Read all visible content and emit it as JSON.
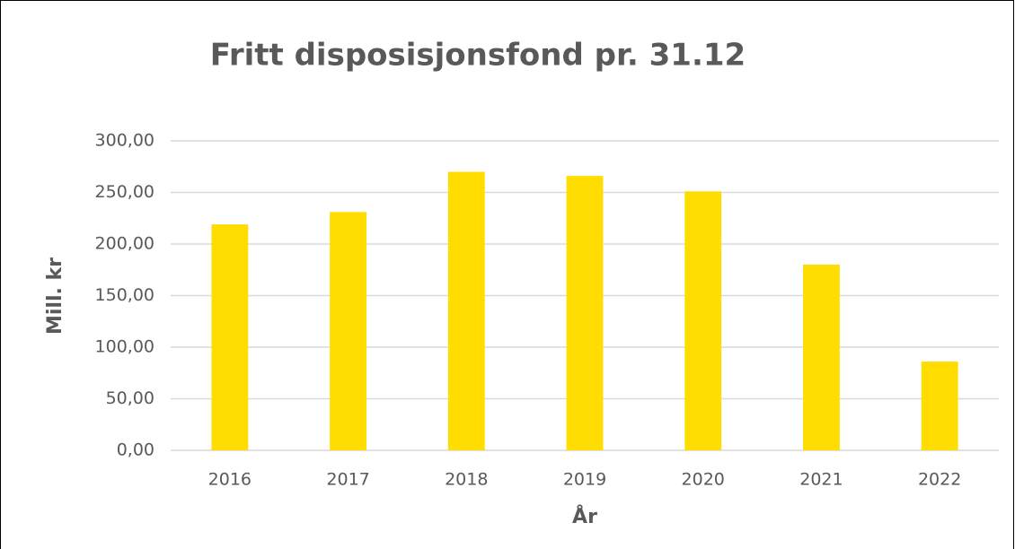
{
  "chart_data": {
    "type": "bar",
    "title": "Fritt disposisjonsfond pr. 31.12",
    "x_label": "År",
    "y_label": "Mill. kr",
    "categories": [
      "2016",
      "2017",
      "2018",
      "2019",
      "2020",
      "2021",
      "2022"
    ],
    "values": [
      219,
      231,
      270,
      266,
      251,
      180,
      86
    ],
    "color": "#ffdd00",
    "ylim": [
      0,
      300
    ],
    "yticks": [
      {
        "value": 0,
        "label": "0,00"
      },
      {
        "value": 50,
        "label": "50,00"
      },
      {
        "value": 100,
        "label": "100,00"
      },
      {
        "value": 150,
        "label": "150,00"
      },
      {
        "value": 200,
        "label": "200,00"
      },
      {
        "value": 250,
        "label": "250,00"
      },
      {
        "value": 300,
        "label": "300,00"
      }
    ],
    "grid": true
  }
}
